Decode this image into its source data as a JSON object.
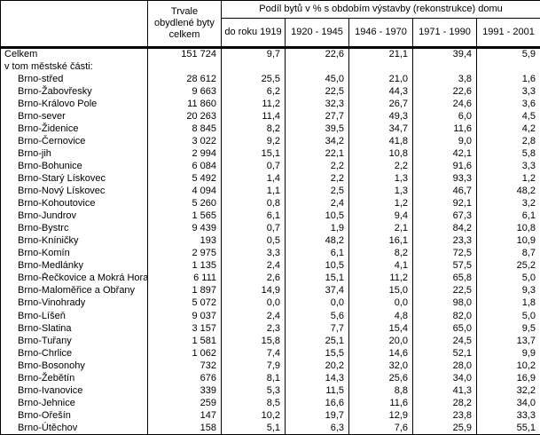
{
  "colors": {
    "border": "#000000",
    "background": "#ffffff",
    "text": "#000000"
  },
  "table": {
    "header": {
      "corner_label": "",
      "total_label": "Trvale obydlené byty celkem",
      "group_label": "Podíl bytů v % s obdobím výstavby (rekonstrukce) domu",
      "period_labels": [
        "do roku 1919",
        "1920 - 1945",
        "1946 - 1970",
        "1971 - 1990",
        "1991 - 2001"
      ]
    },
    "rows": [
      {
        "name": "Celkem",
        "indent": false,
        "total": "151 724",
        "values": [
          "9,7",
          "22,6",
          "21,1",
          "39,4",
          "5,9"
        ]
      },
      {
        "name": "v tom městské části:",
        "indent": false,
        "total": "",
        "values": [
          "",
          "",
          "",
          "",
          ""
        ]
      },
      {
        "name": "Brno-střed",
        "indent": true,
        "total": "28 612",
        "values": [
          "25,5",
          "45,0",
          "21,0",
          "3,8",
          "1,6"
        ]
      },
      {
        "name": "Brno-Žabovřesky",
        "indent": true,
        "total": "9 663",
        "values": [
          "6,2",
          "22,5",
          "44,3",
          "22,6",
          "3,3"
        ]
      },
      {
        "name": "Brno-Královo Pole",
        "indent": true,
        "total": "11 860",
        "values": [
          "11,2",
          "32,3",
          "26,7",
          "24,6",
          "3,6"
        ]
      },
      {
        "name": "Brno-sever",
        "indent": true,
        "total": "20 263",
        "values": [
          "11,4",
          "27,7",
          "49,3",
          "6,0",
          "4,5"
        ]
      },
      {
        "name": "Brno-Židenice",
        "indent": true,
        "total": "8 845",
        "values": [
          "8,2",
          "39,5",
          "34,7",
          "11,6",
          "4,2"
        ]
      },
      {
        "name": "Brno-Černovice",
        "indent": true,
        "total": "3 022",
        "values": [
          "9,2",
          "34,2",
          "41,8",
          "9,0",
          "2,8"
        ]
      },
      {
        "name": "Brno-jih",
        "indent": true,
        "total": "2 994",
        "values": [
          "15,1",
          "22,1",
          "10,8",
          "42,1",
          "5,8"
        ]
      },
      {
        "name": "Brno-Bohunice",
        "indent": true,
        "total": "6 084",
        "values": [
          "0,7",
          "2,2",
          "2,2",
          "91,6",
          "3,3"
        ]
      },
      {
        "name": "Brno-Starý Lískovec",
        "indent": true,
        "total": "5 492",
        "values": [
          "1,4",
          "2,2",
          "1,3",
          "93,3",
          "1,2"
        ]
      },
      {
        "name": "Brno-Nový Lískovec",
        "indent": true,
        "total": "4 094",
        "values": [
          "1,1",
          "2,5",
          "1,3",
          "46,7",
          "48,2"
        ]
      },
      {
        "name": "Brno-Kohoutovice",
        "indent": true,
        "total": "5 260",
        "values": [
          "0,8",
          "2,4",
          "1,2",
          "92,1",
          "3,2"
        ]
      },
      {
        "name": "Brno-Jundrov",
        "indent": true,
        "total": "1 565",
        "values": [
          "6,1",
          "10,5",
          "9,4",
          "67,3",
          "6,1"
        ]
      },
      {
        "name": "Brno-Bystrc",
        "indent": true,
        "total": "9 439",
        "values": [
          "0,7",
          "1,9",
          "2,1",
          "84,2",
          "10,8"
        ]
      },
      {
        "name": "Brno-Kníničky",
        "indent": true,
        "total": "193",
        "values": [
          "0,5",
          "48,2",
          "16,1",
          "23,3",
          "10,9"
        ]
      },
      {
        "name": "Brno-Komín",
        "indent": true,
        "total": "2 975",
        "values": [
          "3,3",
          "6,1",
          "8,2",
          "72,5",
          "8,7"
        ]
      },
      {
        "name": "Brno-Medlánky",
        "indent": true,
        "total": "1 135",
        "values": [
          "2,4",
          "10,5",
          "4,1",
          "57,5",
          "25,2"
        ]
      },
      {
        "name": "Brno-Řečkovice a Mokrá Hora",
        "indent": true,
        "total": "6 111",
        "values": [
          "2,6",
          "15,1",
          "11,2",
          "65,8",
          "5,0"
        ]
      },
      {
        "name": "Brno-Maloměřice a Obřany",
        "indent": true,
        "total": "1 897",
        "values": [
          "14,9",
          "37,4",
          "15,0",
          "22,5",
          "9,3"
        ]
      },
      {
        "name": "Brno-Vinohrady",
        "indent": true,
        "total": "5 072",
        "values": [
          "0,0",
          "0,0",
          "0,0",
          "98,0",
          "1,8"
        ]
      },
      {
        "name": "Brno-Líšeň",
        "indent": true,
        "total": "9 037",
        "values": [
          "2,4",
          "5,6",
          "4,8",
          "82,0",
          "5,0"
        ]
      },
      {
        "name": "Brno-Slatina",
        "indent": true,
        "total": "3 157",
        "values": [
          "2,3",
          "7,7",
          "15,4",
          "65,0",
          "9,5"
        ]
      },
      {
        "name": "Brno-Tuřany",
        "indent": true,
        "total": "1 581",
        "values": [
          "15,8",
          "25,1",
          "20,0",
          "24,5",
          "13,7"
        ]
      },
      {
        "name": "Brno-Chrlice",
        "indent": true,
        "total": "1 062",
        "values": [
          "7,4",
          "15,5",
          "14,6",
          "52,1",
          "9,9"
        ]
      },
      {
        "name": "Brno-Bosonohy",
        "indent": true,
        "total": "732",
        "values": [
          "7,9",
          "20,2",
          "32,0",
          "28,0",
          "10,2"
        ]
      },
      {
        "name": "Brno-Žebětín",
        "indent": true,
        "total": "676",
        "values": [
          "8,1",
          "14,3",
          "25,6",
          "34,0",
          "16,9"
        ]
      },
      {
        "name": "Brno-Ivanovice",
        "indent": true,
        "total": "339",
        "values": [
          "5,3",
          "11,5",
          "8,8",
          "41,3",
          "32,2"
        ]
      },
      {
        "name": "Brno-Jehnice",
        "indent": true,
        "total": "259",
        "values": [
          "8,5",
          "16,6",
          "11,6",
          "28,2",
          "34,0"
        ]
      },
      {
        "name": "Brno-Ořešín",
        "indent": true,
        "total": "147",
        "values": [
          "10,2",
          "19,7",
          "12,9",
          "23,8",
          "33,3"
        ]
      },
      {
        "name": "Brno-Útěchov",
        "indent": true,
        "total": "158",
        "values": [
          "5,1",
          "6,3",
          "7,6",
          "25,9",
          "55,1"
        ]
      }
    ]
  }
}
